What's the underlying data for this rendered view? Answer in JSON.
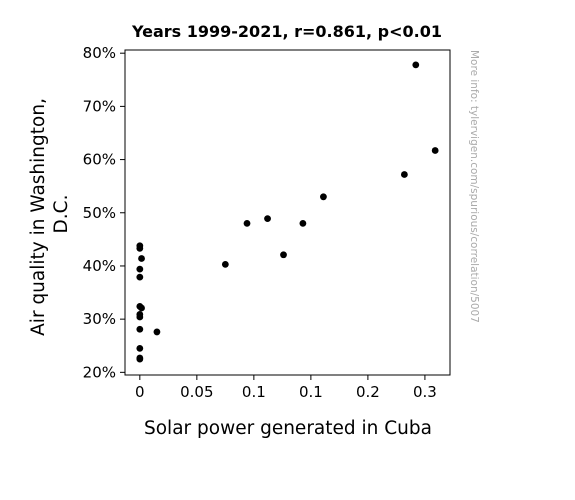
{
  "chart_data": {
    "type": "scatter",
    "title": "Years 1999-2021, r=0.861, p<0.01",
    "xlabel": "Solar power generated in Cuba",
    "ylabel_lines": [
      "Air quality in Washington,",
      "D.C."
    ],
    "watermark": "More info: tylervigen.com/spurious/correlation/5007",
    "xlim": [
      -0.013,
      0.272
    ],
    "ylim": [
      19.5,
      80.6
    ],
    "xticks": [
      0,
      0.05,
      0.1,
      0.15,
      0.2,
      0.25
    ],
    "xtick_labels": [
      "0",
      "0.05",
      "0.1",
      "0.1",
      "0.2",
      "0.3"
    ],
    "yticks": [
      20,
      30,
      40,
      50,
      60,
      70,
      80
    ],
    "ytick_labels": [
      "20%",
      "30%",
      "40%",
      "50%",
      "60%",
      "70%",
      "80%"
    ],
    "marker_color": "#000000",
    "grid": false,
    "points": [
      {
        "x": 0.0,
        "y": 43.8
      },
      {
        "x": 0.0,
        "y": 43.3
      },
      {
        "x": 0.0015,
        "y": 41.4
      },
      {
        "x": 0.0,
        "y": 39.4
      },
      {
        "x": 0.0,
        "y": 37.9
      },
      {
        "x": 0.0,
        "y": 32.4
      },
      {
        "x": 0.0015,
        "y": 32.1
      },
      {
        "x": 0.0,
        "y": 30.9
      },
      {
        "x": 0.0,
        "y": 30.4
      },
      {
        "x": 0.0,
        "y": 28.1
      },
      {
        "x": 0.015,
        "y": 27.6
      },
      {
        "x": 0.0,
        "y": 24.5
      },
      {
        "x": 0.0,
        "y": 22.5
      },
      {
        "x": 0.0,
        "y": 22.7
      },
      {
        "x": 0.075,
        "y": 40.3
      },
      {
        "x": 0.094,
        "y": 48.0
      },
      {
        "x": 0.112,
        "y": 48.9
      },
      {
        "x": 0.126,
        "y": 42.1
      },
      {
        "x": 0.143,
        "y": 48.0
      },
      {
        "x": 0.161,
        "y": 53.0
      },
      {
        "x": 0.232,
        "y": 57.2
      },
      {
        "x": 0.242,
        "y": 77.8
      },
      {
        "x": 0.259,
        "y": 61.7
      }
    ]
  }
}
